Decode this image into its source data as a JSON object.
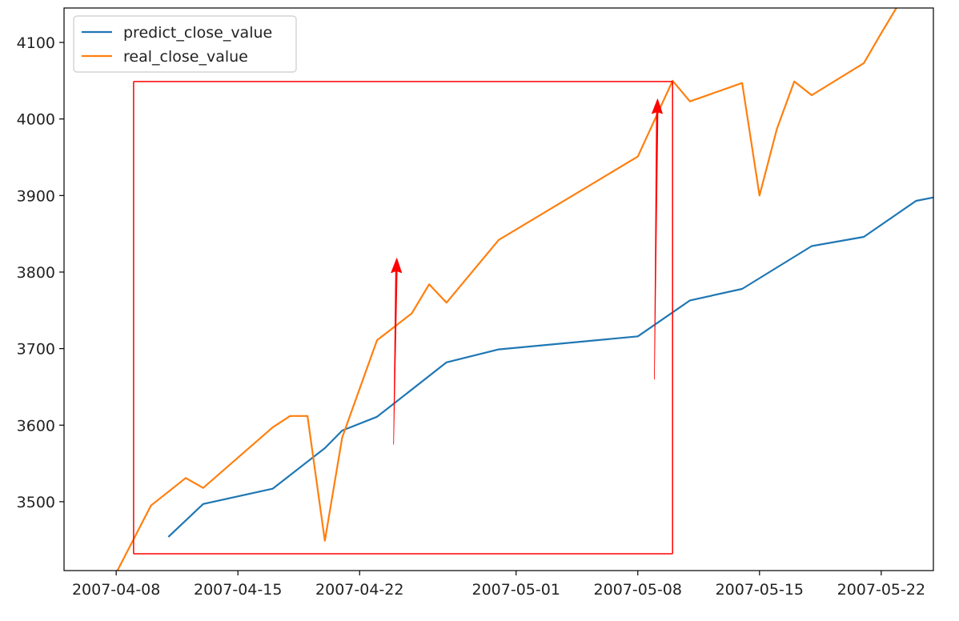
{
  "chart_data": {
    "type": "line",
    "title": "",
    "xlabel": "",
    "ylabel": "",
    "x_axis": {
      "kind": "date",
      "range": [
        "2007-04-05",
        "2007-05-25"
      ],
      "ticks": [
        "2007-04-08",
        "2007-04-15",
        "2007-04-22",
        "2007-05-01",
        "2007-05-08",
        "2007-05-15",
        "2007-05-22"
      ]
    },
    "y_axis": {
      "range": [
        3410,
        4145
      ],
      "ticks": [
        3500,
        3600,
        3700,
        3800,
        3900,
        4000,
        4100
      ]
    },
    "grid": false,
    "legend": {
      "placement": "top-left",
      "entries": [
        "predict_close_value",
        "real_close_value"
      ]
    },
    "series": [
      {
        "name": "predict_close_value",
        "color": "#1f77b4",
        "points": [
          [
            "2007-04-11",
            3454
          ],
          [
            "2007-04-13",
            3497
          ],
          [
            "2007-04-17",
            3517
          ],
          [
            "2007-04-20",
            3570
          ],
          [
            "2007-04-21",
            3593
          ],
          [
            "2007-04-23",
            3611
          ],
          [
            "2007-04-27",
            3682
          ],
          [
            "2007-04-30",
            3699
          ],
          [
            "2007-05-08",
            3716
          ],
          [
            "2007-05-11",
            3763
          ],
          [
            "2007-05-14",
            3778
          ],
          [
            "2007-05-18",
            3834
          ],
          [
            "2007-05-21",
            3846
          ],
          [
            "2007-05-24",
            3893
          ],
          [
            "2007-05-26",
            3902
          ]
        ]
      },
      {
        "name": "real_close_value",
        "color": "#ff7f0e",
        "points": [
          [
            "2007-04-08",
            3407
          ],
          [
            "2007-04-10",
            3495
          ],
          [
            "2007-04-12",
            3531
          ],
          [
            "2007-04-13",
            3518
          ],
          [
            "2007-04-17",
            3597
          ],
          [
            "2007-04-18",
            3612
          ],
          [
            "2007-04-19",
            3612
          ],
          [
            "2007-04-20",
            3449
          ],
          [
            "2007-04-21",
            3584
          ],
          [
            "2007-04-23",
            3711
          ],
          [
            "2007-04-25",
            3746
          ],
          [
            "2007-04-26",
            3784
          ],
          [
            "2007-04-27",
            3760
          ],
          [
            "2007-04-30",
            3842
          ],
          [
            "2007-05-08",
            3951
          ],
          [
            "2007-05-10",
            4050
          ],
          [
            "2007-05-11",
            4023
          ],
          [
            "2007-05-14",
            4047
          ],
          [
            "2007-05-15",
            3900
          ],
          [
            "2007-05-16",
            3987
          ],
          [
            "2007-05-17",
            4049
          ],
          [
            "2007-05-18",
            4031
          ],
          [
            "2007-05-21",
            4073
          ],
          [
            "2007-05-22",
            4112
          ],
          [
            "2007-05-23",
            4150
          ]
        ]
      }
    ],
    "annotations": {
      "color": "#ff0000",
      "highlight_box": {
        "x": [
          "2007-04-09",
          "2007-05-10"
        ],
        "y": [
          3432,
          4049
        ]
      },
      "arrows": [
        {
          "x": "2007-04-24",
          "y_from": 3575,
          "y_to": 3818
        },
        {
          "x": "2007-05-09",
          "y_from": 3660,
          "y_to": 4026
        }
      ]
    }
  }
}
